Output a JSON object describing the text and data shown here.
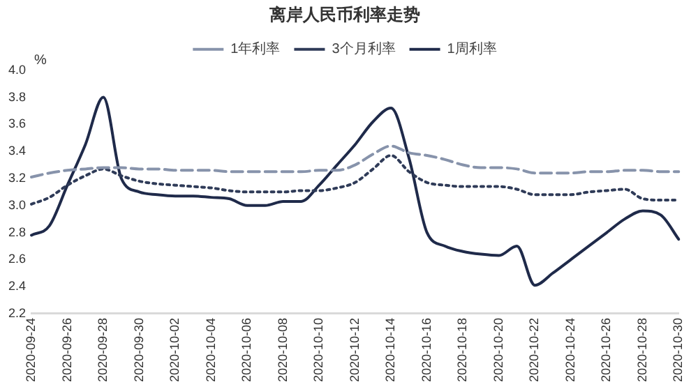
{
  "chart_data": {
    "type": "line",
    "title": "离岸人民币利率走势",
    "ylabel": "%",
    "categories": [
      "2020-09-24",
      null,
      "2020-09-26",
      null,
      "2020-09-28",
      null,
      "2020-09-30",
      null,
      "2020-10-02",
      null,
      "2020-10-04",
      null,
      "2020-10-06",
      null,
      "2020-10-08",
      null,
      "2020-10-10",
      null,
      "2020-10-12",
      null,
      "2020-10-14",
      null,
      "2020-10-16",
      null,
      "2020-10-18",
      null,
      "2020-10-20",
      null,
      "2020-10-22",
      null,
      "2020-10-24",
      null,
      "2020-10-26",
      null,
      "2020-10-28",
      null,
      "2020-10-30"
    ],
    "series": [
      {
        "name": "1年利率",
        "color": "#8793ab",
        "line_style": "dashed",
        "values": [
          3.21,
          3.24,
          3.26,
          3.27,
          3.28,
          3.28,
          3.27,
          3.27,
          3.26,
          3.26,
          3.26,
          3.25,
          3.25,
          3.25,
          3.25,
          3.25,
          3.26,
          3.26,
          3.3,
          3.38,
          3.44,
          3.39,
          3.37,
          3.34,
          3.3,
          3.28,
          3.28,
          3.27,
          3.24,
          3.24,
          3.24,
          3.25,
          3.25,
          3.26,
          3.26,
          3.25,
          3.25
        ]
      },
      {
        "name": "3个月利率",
        "color": "#2f3b58",
        "line_style": "dotted",
        "values": [
          3.01,
          3.06,
          3.15,
          3.22,
          3.27,
          3.22,
          3.18,
          3.16,
          3.15,
          3.14,
          3.13,
          3.11,
          3.1,
          3.1,
          3.1,
          3.11,
          3.11,
          3.13,
          3.17,
          3.27,
          3.37,
          3.25,
          3.17,
          3.15,
          3.14,
          3.14,
          3.14,
          3.12,
          3.08,
          3.08,
          3.08,
          3.1,
          3.11,
          3.12,
          3.05,
          3.04,
          3.04
        ]
      },
      {
        "name": "1周利率",
        "color": "#1f2a4a",
        "line_style": "solid",
        "values": [
          2.78,
          2.85,
          3.15,
          3.45,
          3.8,
          3.2,
          3.1,
          3.08,
          3.07,
          3.07,
          3.06,
          3.05,
          3.0,
          3.0,
          3.03,
          3.03,
          3.15,
          3.3,
          3.45,
          3.62,
          3.72,
          3.35,
          2.8,
          2.7,
          2.66,
          2.64,
          2.63,
          2.7,
          2.41,
          2.5,
          2.6,
          2.7,
          2.8,
          2.9,
          2.96,
          2.93,
          2.75
        ]
      }
    ],
    "ylim": [
      2.2,
      4.0
    ],
    "yticks": [
      {
        "value": 2.2,
        "label": "2.2"
      },
      {
        "value": 2.4,
        "label": "2.4"
      },
      {
        "value": 2.6,
        "label": "2.6"
      },
      {
        "value": 2.8,
        "label": "2.8"
      },
      {
        "value": 3.0,
        "label": "3.0"
      },
      {
        "value": 3.2,
        "label": "3.2"
      },
      {
        "value": 3.4,
        "label": "3.4"
      },
      {
        "value": 3.6,
        "label": "3.6"
      },
      {
        "value": 3.8,
        "label": "3.8"
      },
      {
        "value": 4.0,
        "label": "4.0"
      }
    ],
    "grid": false,
    "legend": "top",
    "marker": "none"
  }
}
